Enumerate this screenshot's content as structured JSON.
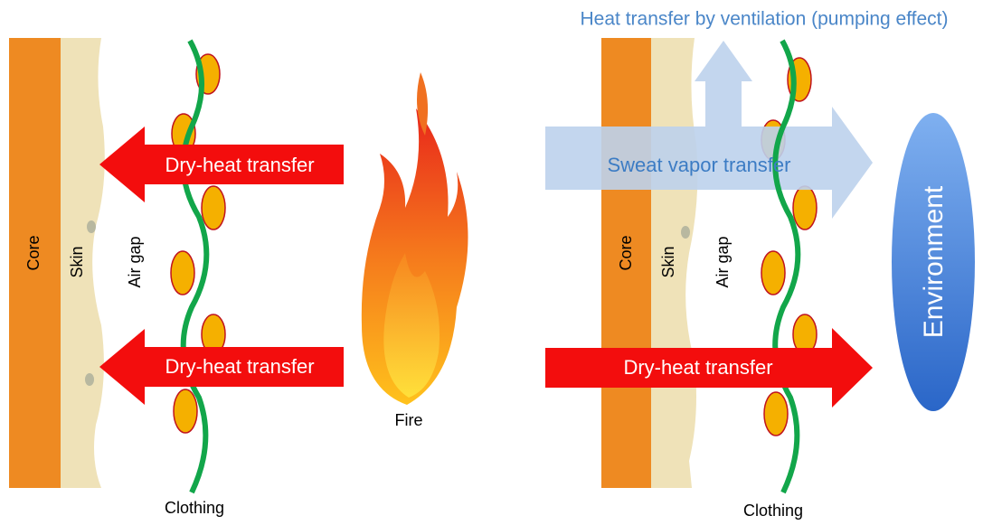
{
  "left": {
    "core": "Core",
    "skin": "Skin",
    "air_gap": "Air gap",
    "clothing": "Clothing",
    "fire": "Fire",
    "arrows": [
      "Dry-heat transfer",
      "Dry-heat transfer"
    ]
  },
  "right": {
    "title": "Heat transfer by ventilation (pumping effect)",
    "core": "Core",
    "skin": "Skin",
    "air_gap": "Air gap",
    "clothing": "Clothing",
    "environment": "Environment",
    "arrows": [
      "Sweat vapor transfer",
      "Dry-heat transfer"
    ]
  }
}
